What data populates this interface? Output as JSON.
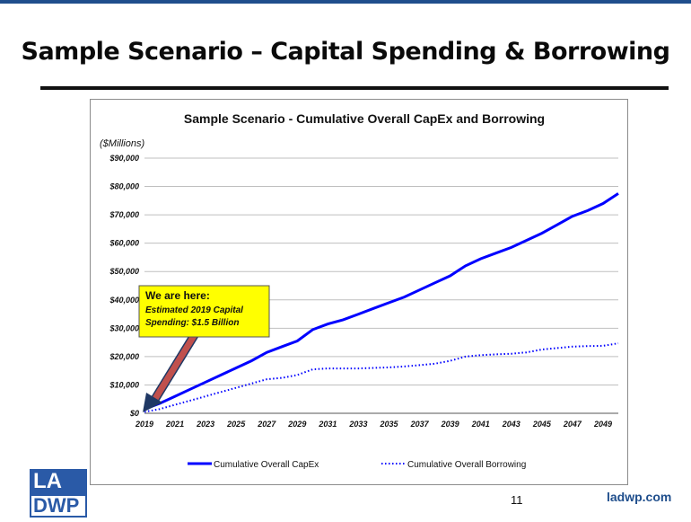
{
  "slide": {
    "title": "Sample Scenario – Capital Spending & Borrowing",
    "page_number": "11",
    "site": "ladwp.com",
    "logo_top": "LA",
    "logo_bottom": "DWP"
  },
  "callout": {
    "heading": "We are here:",
    "line1": "Estimated 2019 Capital",
    "line2": "Spending: $1.5 Billion",
    "fill": "#ffff00"
  },
  "colors": {
    "series": "#0000ff",
    "arrow": "#c0504d",
    "brand": "#1f4e8c"
  },
  "chart_data": {
    "type": "line",
    "title": "Sample Scenario - Cumulative Overall CapEx and Borrowing",
    "ylabel": "($Millions)",
    "xlabel": "",
    "x": [
      2019,
      2020,
      2021,
      2022,
      2023,
      2024,
      2025,
      2026,
      2027,
      2028,
      2029,
      2030,
      2031,
      2032,
      2033,
      2034,
      2035,
      2036,
      2037,
      2038,
      2039,
      2040,
      2041,
      2042,
      2043,
      2044,
      2045,
      2046,
      2047,
      2048,
      2049,
      2050
    ],
    "xticks": [
      "2019",
      "2021",
      "2023",
      "2025",
      "2027",
      "2029",
      "2031",
      "2033",
      "2035",
      "2037",
      "2039",
      "2041",
      "2043",
      "2045",
      "2047",
      "2049"
    ],
    "yticks": [
      "$0",
      "$10,000",
      "$20,000",
      "$30,000",
      "$40,000",
      "$50,000",
      "$60,000",
      "$70,000",
      "$80,000",
      "$90,000"
    ],
    "ylim": [
      0,
      90000
    ],
    "grid": true,
    "legend_position": "bottom",
    "series": [
      {
        "name": "Cumulative Overall CapEx",
        "style": "solid",
        "values": [
          1500,
          3500,
          6000,
          8500,
          11000,
          13500,
          16000,
          18500,
          21500,
          23500,
          25500,
          29500,
          31500,
          33000,
          35000,
          37000,
          39000,
          41000,
          43500,
          46000,
          48500,
          52000,
          54500,
          56500,
          58500,
          61000,
          63500,
          66500,
          69500,
          71500,
          74000,
          77500
        ]
      },
      {
        "name": "Cumulative Overall Borrowing",
        "style": "dotted",
        "values": [
          500,
          1500,
          3000,
          4500,
          6000,
          7500,
          9000,
          10500,
          12000,
          12500,
          13500,
          15500,
          15800,
          15800,
          15800,
          16000,
          16200,
          16500,
          17000,
          17500,
          18500,
          20000,
          20500,
          20800,
          21000,
          21500,
          22500,
          23000,
          23500,
          23700,
          23800,
          24700
        ]
      }
    ]
  }
}
